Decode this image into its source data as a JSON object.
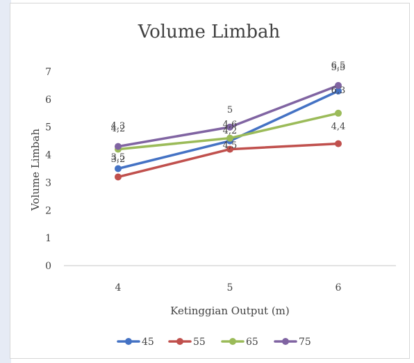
{
  "chart_data": {
    "type": "line",
    "title": "Volume Limbah",
    "xlabel": "Ketinggian Output (m)",
    "ylabel": "Volume Limbah",
    "categories": [
      "4",
      "5",
      "6"
    ],
    "ylim": [
      0,
      7
    ],
    "yticks": [
      "0",
      "1",
      "2",
      "3",
      "4",
      "5",
      "6",
      "7"
    ],
    "grid": false,
    "legend_position": "bottom",
    "series": [
      {
        "name": "45",
        "color": "#4472c4",
        "values": [
          3.5,
          4.5,
          6.3
        ],
        "labels": [
          "3,5",
          "4,5",
          "6,3"
        ]
      },
      {
        "name": "55",
        "color": "#c0504d",
        "values": [
          3.2,
          4.2,
          4.4
        ],
        "labels": [
          "3,2",
          "4,2",
          "4,4"
        ]
      },
      {
        "name": "65",
        "color": "#9bbb59",
        "values": [
          4.2,
          4.6,
          5.5
        ],
        "labels": [
          "4,2",
          "4,6",
          "5,5"
        ]
      },
      {
        "name": "75",
        "color": "#8064a2",
        "values": [
          4.3,
          5.0,
          6.5
        ],
        "labels": [
          "4,3",
          "5",
          "6,5"
        ]
      }
    ]
  }
}
